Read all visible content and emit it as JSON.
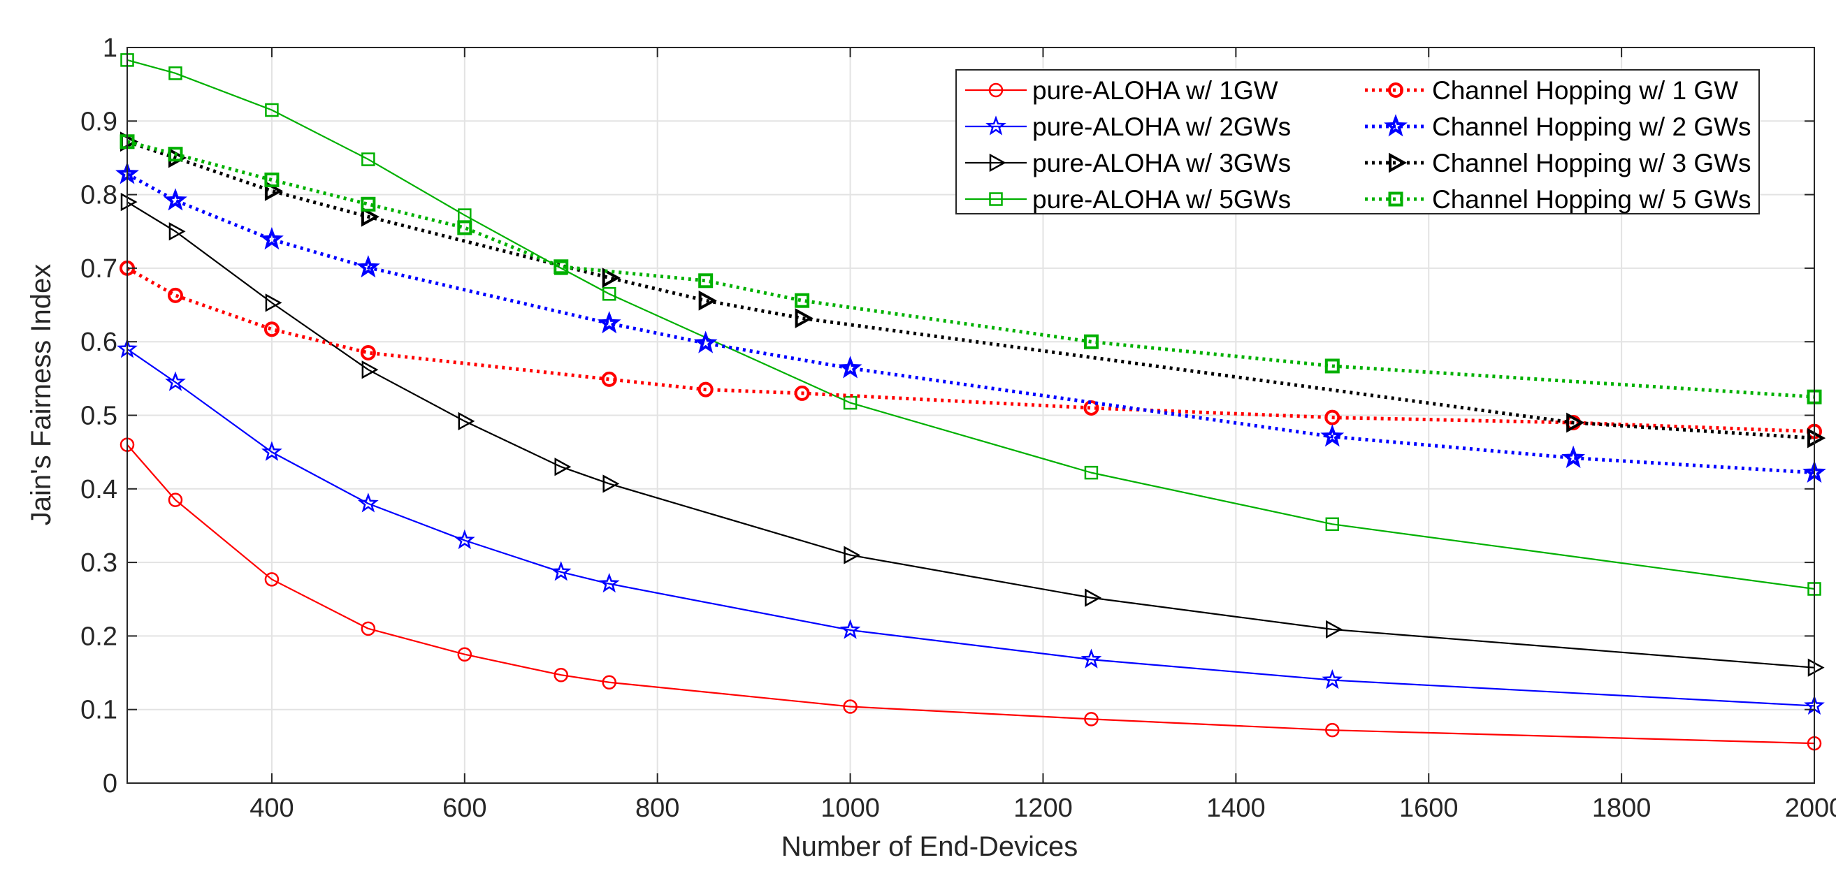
{
  "chart_data": {
    "type": "line",
    "title": "",
    "xlabel": "Number of End-Devices",
    "ylabel": "Jain's Fairness Index",
    "xlim": [
      250,
      2000
    ],
    "ylim": [
      0,
      1
    ],
    "grid": true,
    "x_ticks": [
      400,
      600,
      800,
      1000,
      1200,
      1400,
      1600,
      1800,
      2000
    ],
    "x_tick_labels": [
      "400",
      "600",
      "800",
      "1000",
      "1200",
      "1400",
      "1600",
      "1800",
      "2000"
    ],
    "y_ticks": [
      0,
      0.1,
      0.2,
      0.3,
      0.4,
      0.5,
      0.6,
      0.7,
      0.8,
      0.9,
      1
    ],
    "y_tick_labels": [
      "0",
      "0.1",
      "0.2",
      "0.3",
      "0.4",
      "0.5",
      "0.6",
      "0.7",
      "0.8",
      "0.9",
      "1"
    ],
    "legend_position": "top-right",
    "series": [
      {
        "name": "pure-ALOHA w/ 1GW",
        "color": "#ff0000",
        "marker": "circle",
        "line": "solid",
        "x": [
          250,
          300,
          400,
          500,
          600,
          700,
          750,
          1000,
          1250,
          1500,
          2000
        ],
        "values": [
          0.46,
          0.385,
          0.277,
          0.21,
          0.175,
          0.147,
          0.137,
          0.104,
          0.087,
          0.072,
          0.054
        ]
      },
      {
        "name": "pure-ALOHA w/ 2GWs",
        "color": "#0000ff",
        "marker": "star",
        "line": "solid",
        "x": [
          250,
          300,
          400,
          500,
          600,
          700,
          750,
          1000,
          1250,
          1500,
          2000
        ],
        "values": [
          0.59,
          0.545,
          0.45,
          0.38,
          0.33,
          0.287,
          0.271,
          0.208,
          0.168,
          0.14,
          0.105
        ]
      },
      {
        "name": "pure-ALOHA w/ 3GWs",
        "color": "#000000",
        "marker": "triangle-right",
        "line": "solid",
        "x": [
          250,
          300,
          400,
          500,
          600,
          700,
          750,
          1000,
          1250,
          1500,
          2000
        ],
        "values": [
          0.79,
          0.75,
          0.653,
          0.562,
          0.492,
          0.43,
          0.407,
          0.31,
          0.252,
          0.209,
          0.157
        ]
      },
      {
        "name": "pure-ALOHA w/ 5GWs",
        "color": "#00b000",
        "marker": "square",
        "line": "solid",
        "x": [
          250,
          300,
          400,
          500,
          600,
          700,
          750,
          1000,
          1250,
          1500,
          2000
        ],
        "values": [
          0.983,
          0.965,
          0.915,
          0.848,
          0.772,
          0.7,
          0.665,
          0.517,
          0.422,
          0.352,
          0.264
        ]
      },
      {
        "name": "Channel Hopping w/ 1 GW",
        "color": "#ff0000",
        "marker": "circle",
        "line": "dotted",
        "x": [
          250,
          300,
          400,
          500,
          750,
          850,
          950,
          1250,
          1500,
          1750,
          2000
        ],
        "values": [
          0.7,
          0.663,
          0.617,
          0.585,
          0.549,
          0.535,
          0.53,
          0.51,
          0.497,
          0.49,
          0.478
        ]
      },
      {
        "name": "Channel Hopping w/ 2 GWs",
        "color": "#0000ff",
        "marker": "star",
        "line": "dotted",
        "x": [
          250,
          300,
          400,
          500,
          750,
          850,
          1000,
          1500,
          1750,
          2000
        ],
        "values": [
          0.828,
          0.792,
          0.739,
          0.701,
          0.625,
          0.598,
          0.564,
          0.471,
          0.442,
          0.422
        ]
      },
      {
        "name": "Channel Hopping w/ 3 GWs",
        "color": "#000000",
        "marker": "triangle-right",
        "line": "dotted",
        "x": [
          250,
          300,
          400,
          500,
          750,
          850,
          950,
          1750,
          2000
        ],
        "values": [
          0.872,
          0.85,
          0.805,
          0.77,
          0.687,
          0.656,
          0.632,
          0.49,
          0.469
        ]
      },
      {
        "name": "Channel Hopping w/ 5 GWs",
        "color": "#00b000",
        "marker": "square",
        "line": "dotted",
        "x": [
          250,
          300,
          400,
          500,
          600,
          700,
          850,
          950,
          1250,
          1500,
          2000
        ],
        "values": [
          0.872,
          0.855,
          0.82,
          0.787,
          0.755,
          0.702,
          0.683,
          0.656,
          0.6,
          0.567,
          0.525
        ]
      }
    ]
  }
}
